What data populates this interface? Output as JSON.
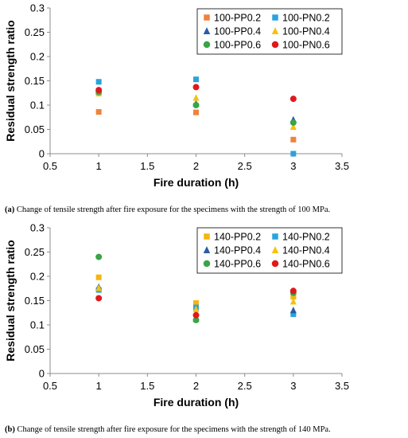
{
  "chart_data": [
    {
      "type": "scatter",
      "title": "",
      "xlabel": "Fire duration (h)",
      "ylabel": "Residual strength ratio",
      "xlim": [
        0.5,
        3.5
      ],
      "ylim": [
        0,
        0.3
      ],
      "xticks": [
        "0.5",
        "1",
        "1.5",
        "2",
        "2.5",
        "3",
        "3.5"
      ],
      "yticks": [
        "0",
        "0.05",
        "0.1",
        "0.15",
        "0.2",
        "0.25",
        "0.3"
      ],
      "grid": false,
      "legend_position": "top-right",
      "legend_columns": 2,
      "series": [
        {
          "name": "100-PP0.2",
          "marker": "square",
          "color": "#f0823c",
          "x": [
            1,
            2,
            3
          ],
          "y": [
            0.086,
            0.085,
            0.029
          ]
        },
        {
          "name": "100-PN0.2",
          "marker": "square",
          "color": "#2aa3dc",
          "x": [
            1,
            2,
            3
          ],
          "y": [
            0.148,
            0.153,
            0.0
          ]
        },
        {
          "name": "100-PP0.4",
          "marker": "triangle",
          "color": "#2a5ca8",
          "x": [
            1,
            2,
            3
          ],
          "y": [
            0.128,
            0.103,
            0.07
          ]
        },
        {
          "name": "100-PN0.4",
          "marker": "triangle",
          "color": "#f6c10e",
          "x": [
            1,
            2,
            3
          ],
          "y": [
            0.124,
            0.115,
            0.055
          ]
        },
        {
          "name": "100-PP0.6",
          "marker": "circle",
          "color": "#3aa447",
          "x": [
            1,
            2,
            3
          ],
          "y": [
            0.127,
            0.1,
            0.064
          ]
        },
        {
          "name": "100-PN0.6",
          "marker": "circle",
          "color": "#e0191c",
          "x": [
            1,
            2,
            3
          ],
          "y": [
            0.131,
            0.137,
            0.113
          ]
        }
      ]
    },
    {
      "type": "scatter",
      "title": "",
      "xlabel": "Fire duration (h)",
      "ylabel": "Residual strength ratio",
      "xlim": [
        0.5,
        3.5
      ],
      "ylim": [
        0,
        0.3
      ],
      "xticks": [
        "0.5",
        "1",
        "1.5",
        "2",
        "2.5",
        "3",
        "3.5"
      ],
      "yticks": [
        "0",
        "0.05",
        "0.1",
        "0.15",
        "0.2",
        "0.25",
        "0.3"
      ],
      "grid": false,
      "legend_position": "top-right",
      "legend_columns": 2,
      "series": [
        {
          "name": "140-PP0.2",
          "marker": "square",
          "color": "#f6b50f",
          "x": [
            1,
            2,
            3
          ],
          "y": [
            0.198,
            0.145,
            0.158
          ]
        },
        {
          "name": "140-PN0.2",
          "marker": "square",
          "color": "#2aa3dc",
          "x": [
            1,
            2,
            3
          ],
          "y": [
            0.172,
            0.136,
            0.122
          ]
        },
        {
          "name": "140-PP0.4",
          "marker": "triangle",
          "color": "#2a5ca8",
          "x": [
            1,
            2,
            3
          ],
          "y": [
            0.178,
            0.112,
            0.13
          ]
        },
        {
          "name": "140-PN0.4",
          "marker": "triangle",
          "color": "#f6c10e",
          "x": [
            1,
            2,
            3
          ],
          "y": [
            0.176,
            0.132,
            0.148
          ]
        },
        {
          "name": "140-PP0.6",
          "marker": "circle",
          "color": "#3aa447",
          "x": [
            1,
            2,
            3
          ],
          "y": [
            0.24,
            0.11,
            0.166
          ]
        },
        {
          "name": "140-PN0.6",
          "marker": "circle",
          "color": "#e0191c",
          "x": [
            1,
            2,
            3
          ],
          "y": [
            0.155,
            0.12,
            0.17
          ]
        }
      ]
    }
  ],
  "captions": {
    "a_label": "(a)",
    "a_text": " Change of tensile strength after fire exposure for the specimens with the strength of 100 MPa.",
    "b_label": "(b)",
    "b_text": " Change of tensile strength after fire exposure for the specimens with the strength of 140 MPa."
  }
}
